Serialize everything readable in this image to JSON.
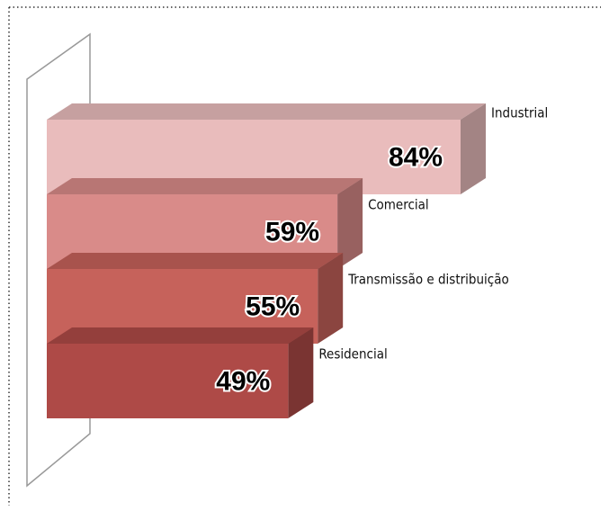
{
  "chart_data": {
    "type": "bar3d",
    "categories": [
      "Industrial",
      "Comercial",
      "Transmissão e distribuição",
      "Residencial"
    ],
    "values": [
      84,
      59,
      55,
      49
    ],
    "value_labels": [
      "84%",
      "59%",
      "55%",
      "49%"
    ],
    "colors": [
      "#e9bcbc",
      "#d98b89",
      "#c6625b",
      "#ae4a47"
    ]
  }
}
